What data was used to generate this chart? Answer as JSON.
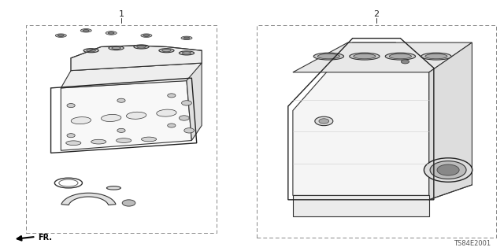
{
  "background_color": "#ffffff",
  "box1_label": "1",
  "box2_label": "2",
  "part_number": "TS84E2001",
  "fr_label": "FR.",
  "line_color": "#333333",
  "dashed_color": "#888888",
  "text_color": "#222222"
}
